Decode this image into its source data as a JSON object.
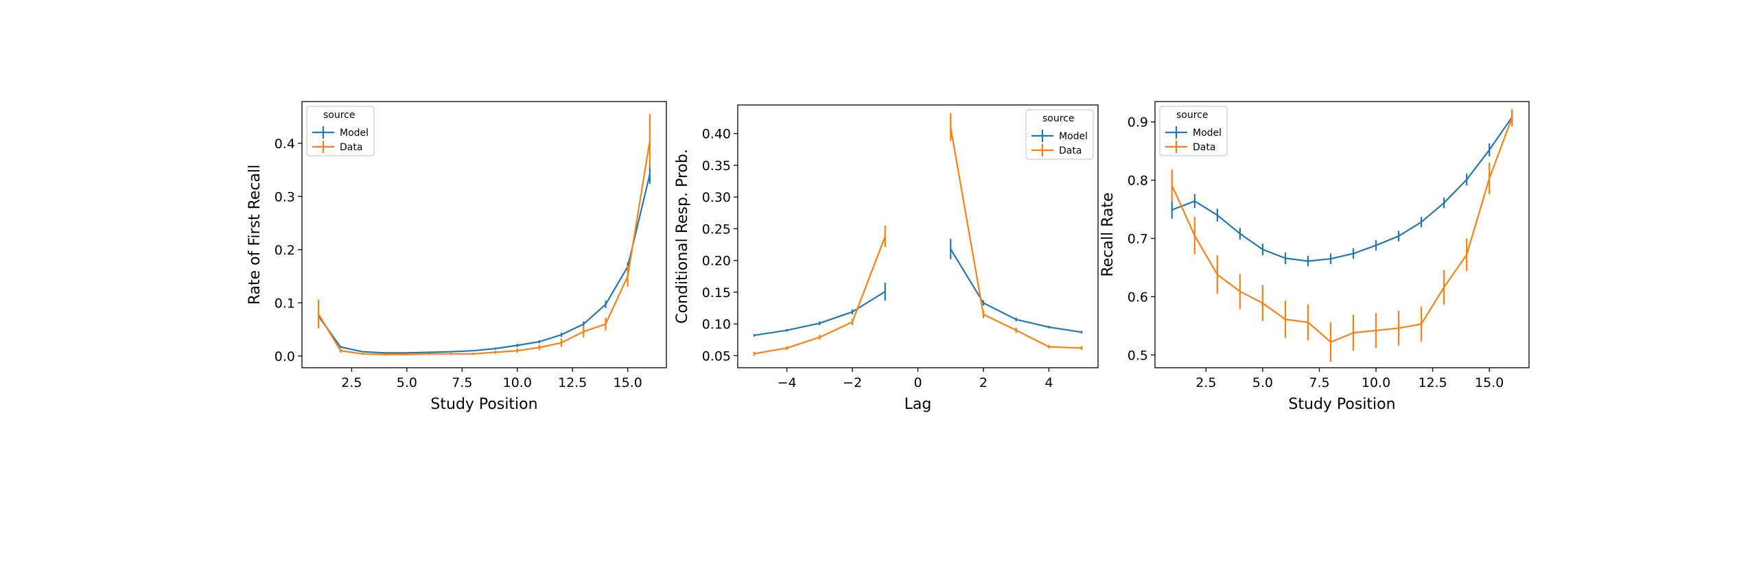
{
  "chart_data": [
    {
      "type": "line",
      "title": "",
      "xlabel": "Study Position",
      "ylabel": "Rate of First Recall",
      "xlim": [
        0.25,
        16.75
      ],
      "ylim": [
        -0.022,
        0.4785
      ],
      "xticks": [
        2.5,
        5.0,
        7.5,
        10.0,
        12.5,
        15.0
      ],
      "xtick_labels": [
        "2.5",
        "5.0",
        "7.5",
        "10.0",
        "12.5",
        "15.0"
      ],
      "yticks": [
        0.0,
        0.1,
        0.2,
        0.3,
        0.4
      ],
      "ytick_labels": [
        "0.0",
        "0.1",
        "0.2",
        "0.3",
        "0.4"
      ],
      "legend": {
        "title": "source",
        "position": "upper left"
      },
      "grid": false,
      "series": [
        {
          "name": "Model",
          "color": "#1f77b4",
          "x": [
            1,
            2,
            3,
            4,
            5,
            6,
            7,
            8,
            9,
            10,
            11,
            12,
            13,
            14,
            15,
            16
          ],
          "y": [
            0.075,
            0.017,
            0.008,
            0.006,
            0.006,
            0.007,
            0.008,
            0.01,
            0.014,
            0.02,
            0.027,
            0.04,
            0.06,
            0.097,
            0.168,
            0.342
          ],
          "err": [
            0.004,
            0.002,
            0.001,
            0.001,
            0.001,
            0.001,
            0.001,
            0.001,
            0.002,
            0.003,
            0.003,
            0.004,
            0.005,
            0.007,
            0.008,
            0.018
          ]
        },
        {
          "name": "Data",
          "color": "#ff7f0e",
          "x": [
            1,
            2,
            3,
            4,
            5,
            6,
            7,
            8,
            9,
            10,
            11,
            12,
            13,
            14,
            15,
            16
          ],
          "y": [
            0.079,
            0.01,
            0.004,
            0.003,
            0.003,
            0.004,
            0.004,
            0.004,
            0.007,
            0.01,
            0.016,
            0.025,
            0.046,
            0.06,
            0.15,
            0.405
          ],
          "err": [
            0.027,
            0.004,
            0.002,
            0.002,
            0.002,
            0.002,
            0.002,
            0.002,
            0.003,
            0.004,
            0.005,
            0.008,
            0.011,
            0.012,
            0.02,
            0.05
          ]
        }
      ]
    },
    {
      "type": "line",
      "title": "",
      "xlabel": "Lag",
      "ylabel": "Conditional Resp. Prob.",
      "xlim": [
        -5.5,
        5.5
      ],
      "ylim": [
        0.031,
        0.445
      ],
      "xticks": [
        -4,
        -2,
        0,
        2,
        4
      ],
      "xtick_labels": [
        "−4",
        "−2",
        "0",
        "2",
        "4"
      ],
      "yticks": [
        0.05,
        0.1,
        0.15,
        0.2,
        0.25,
        0.3,
        0.35,
        0.4
      ],
      "ytick_labels": [
        "0.05",
        "0.10",
        "0.15",
        "0.20",
        "0.25",
        "0.30",
        "0.35",
        "0.40"
      ],
      "legend": {
        "title": "source",
        "position": "upper right"
      },
      "grid": false,
      "series": [
        {
          "name": "Model",
          "color": "#1f77b4",
          "segments": [
            {
              "x": [
                -5,
                -4,
                -3,
                -2,
                -1
              ],
              "y": [
                0.082,
                0.09,
                0.101,
                0.119,
                0.151
              ],
              "err": [
                0.002,
                0.002,
                0.003,
                0.004,
                0.014
              ]
            },
            {
              "x": [
                1,
                2,
                3,
                4,
                5
              ],
              "y": [
                0.218,
                0.133,
                0.107,
                0.095,
                0.087
              ],
              "err": [
                0.016,
                0.004,
                0.003,
                0.002,
                0.002
              ]
            }
          ]
        },
        {
          "name": "Data",
          "color": "#ff7f0e",
          "segments": [
            {
              "x": [
                -5,
                -4,
                -3,
                -2,
                -1
              ],
              "y": [
                0.053,
                0.062,
                0.079,
                0.103,
                0.238
              ],
              "err": [
                0.003,
                0.003,
                0.004,
                0.005,
                0.017
              ]
            },
            {
              "x": [
                1,
                2,
                3,
                4,
                5
              ],
              "y": [
                0.41,
                0.115,
                0.09,
                0.064,
                0.062
              ],
              "err": [
                0.022,
                0.006,
                0.004,
                0.003,
                0.003
              ]
            }
          ]
        }
      ]
    },
    {
      "type": "line",
      "title": "",
      "xlabel": "Study Position",
      "ylabel": "Recall Rate",
      "xlim": [
        0.25,
        16.75
      ],
      "ylim": [
        0.478,
        0.935
      ],
      "xticks": [
        2.5,
        5.0,
        7.5,
        10.0,
        12.5,
        15.0
      ],
      "xtick_labels": [
        "2.5",
        "5.0",
        "7.5",
        "10.0",
        "12.5",
        "15.0"
      ],
      "yticks": [
        0.5,
        0.6,
        0.7,
        0.8,
        0.9
      ],
      "ytick_labels": [
        "0.5",
        "0.6",
        "0.7",
        "0.8",
        "0.9"
      ],
      "legend": {
        "title": "source",
        "position": "upper left"
      },
      "grid": false,
      "series": [
        {
          "name": "Model",
          "color": "#1f77b4",
          "x": [
            1,
            2,
            3,
            4,
            5,
            6,
            7,
            8,
            9,
            10,
            11,
            12,
            13,
            14,
            15,
            16
          ],
          "y": [
            0.749,
            0.764,
            0.74,
            0.708,
            0.681,
            0.666,
            0.661,
            0.665,
            0.674,
            0.688,
            0.704,
            0.728,
            0.761,
            0.801,
            0.852,
            0.908
          ],
          "err": [
            0.015,
            0.012,
            0.011,
            0.01,
            0.01,
            0.01,
            0.009,
            0.009,
            0.009,
            0.009,
            0.009,
            0.009,
            0.009,
            0.01,
            0.011,
            0.01
          ]
        },
        {
          "name": "Data",
          "color": "#ff7f0e",
          "x": [
            1,
            2,
            3,
            4,
            5,
            6,
            7,
            8,
            9,
            10,
            11,
            12,
            13,
            14,
            15,
            16
          ],
          "y": [
            0.791,
            0.705,
            0.638,
            0.609,
            0.589,
            0.561,
            0.556,
            0.522,
            0.538,
            0.542,
            0.546,
            0.553,
            0.616,
            0.672,
            0.803,
            0.907
          ],
          "err": [
            0.027,
            0.032,
            0.033,
            0.03,
            0.031,
            0.032,
            0.031,
            0.034,
            0.031,
            0.03,
            0.03,
            0.03,
            0.03,
            0.028,
            0.027,
            0.015
          ]
        }
      ]
    }
  ]
}
